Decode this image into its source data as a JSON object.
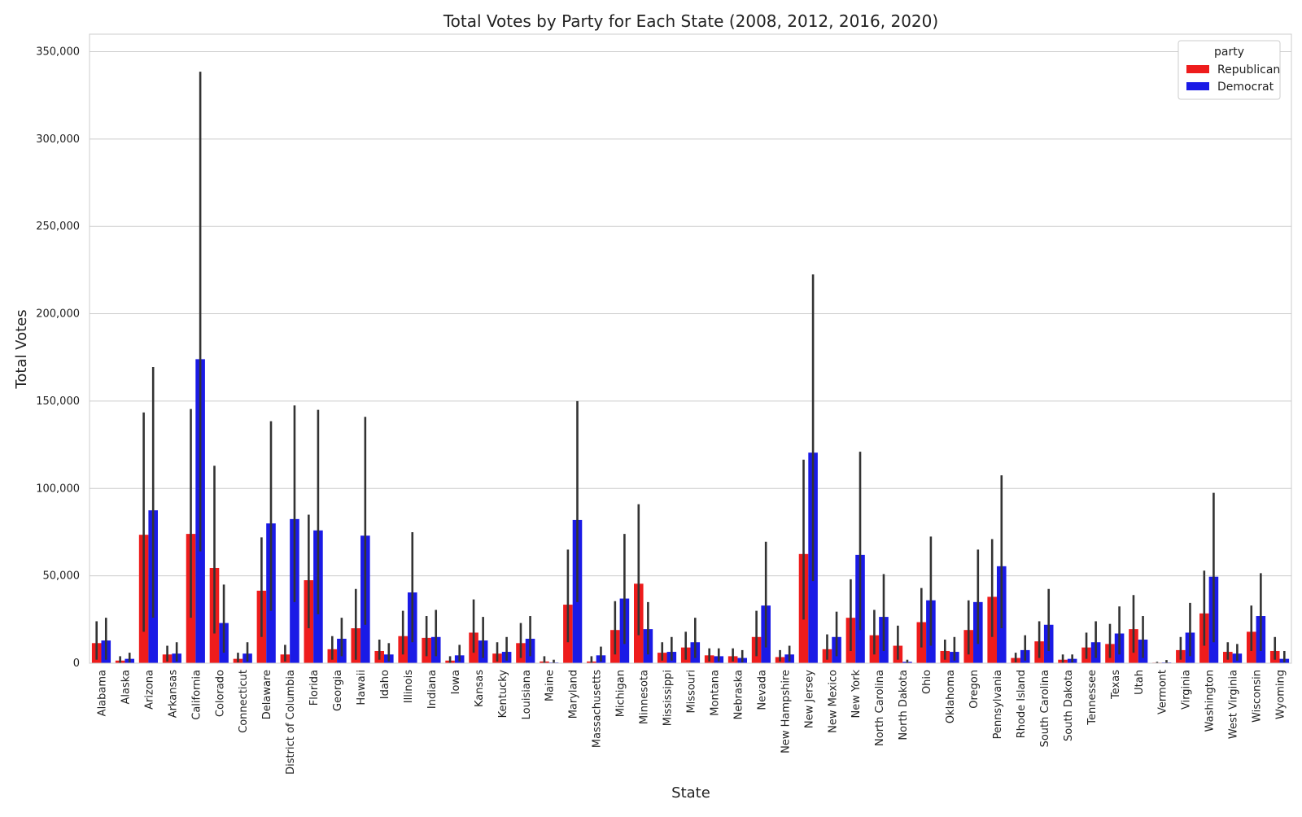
{
  "chart_data": {
    "type": "bar",
    "title": "Total Votes by Party for Each State (2008, 2012, 2016, 2020)",
    "xlabel": "State",
    "ylabel": "Total Votes",
    "ylim": [
      0,
      360000
    ],
    "y_ticks": [
      0,
      50000,
      100000,
      150000,
      200000,
      250000,
      300000,
      350000
    ],
    "y_tick_labels": [
      "0",
      "50,000",
      "100,000",
      "150,000",
      "200,000",
      "250,000",
      "300,000",
      "350,000"
    ],
    "grid": true,
    "legend": {
      "title": "party",
      "placement": "top-right"
    },
    "categories": [
      "Alabama",
      "Alaska",
      "Arizona",
      "Arkansas",
      "California",
      "Colorado",
      "Connecticut",
      "Delaware",
      "District of Columbia",
      "Florida",
      "Georgia",
      "Hawaii",
      "Idaho",
      "Illinois",
      "Indiana",
      "Iowa",
      "Kansas",
      "Kentucky",
      "Louisiana",
      "Maine",
      "Maryland",
      "Massachusetts",
      "Michigan",
      "Minnesota",
      "Mississippi",
      "Missouri",
      "Montana",
      "Nebraska",
      "Nevada",
      "New Hampshire",
      "New Jersey",
      "New Mexico",
      "New York",
      "North Carolina",
      "North Dakota",
      "Ohio",
      "Oklahoma",
      "Oregon",
      "Pennsylvania",
      "Rhode Island",
      "South Carolina",
      "South Dakota",
      "Tennessee",
      "Texas",
      "Utah",
      "Vermont",
      "Virginia",
      "Washington",
      "West Virginia",
      "Wisconsin",
      "Wyoming"
    ],
    "series": [
      {
        "name": "Republican",
        "color": "#ee1c1c",
        "values": [
          11500,
          1500,
          73500,
          5000,
          74000,
          54500,
          2500,
          41500,
          5000,
          47500,
          8000,
          20000,
          7000,
          15500,
          14500,
          1500,
          17500,
          5500,
          11500,
          1000,
          33500,
          1000,
          19000,
          45500,
          6000,
          9000,
          4500,
          4000,
          15000,
          3500,
          62500,
          8000,
          26000,
          16000,
          10000,
          23500,
          7000,
          19000,
          38000,
          3000,
          12500,
          2000,
          9000,
          11000,
          19500,
          300,
          7500,
          28500,
          6500,
          18000,
          7000
        ],
        "ci": [
          [
            2000,
            24000
          ],
          [
            200,
            4000
          ],
          [
            18000,
            143500
          ],
          [
            1000,
            10000
          ],
          [
            26000,
            145500
          ],
          [
            17000,
            113000
          ],
          [
            500,
            6000
          ],
          [
            15000,
            72000
          ],
          [
            1000,
            10500
          ],
          [
            20000,
            85000
          ],
          [
            2000,
            15500
          ],
          [
            2000,
            42500
          ],
          [
            2000,
            13500
          ],
          [
            5000,
            30000
          ],
          [
            4000,
            27000
          ],
          [
            200,
            4000
          ],
          [
            6000,
            36500
          ],
          [
            1000,
            12000
          ],
          [
            3000,
            23000
          ],
          [
            200,
            4000
          ],
          [
            12000,
            65000
          ],
          [
            200,
            4000
          ],
          [
            5000,
            35500
          ],
          [
            16000,
            91000
          ],
          [
            1500,
            12000
          ],
          [
            2000,
            18000
          ],
          [
            1000,
            8500
          ],
          [
            1000,
            8500
          ],
          [
            4000,
            30000
          ],
          [
            1000,
            7500
          ],
          [
            25000,
            116500
          ],
          [
            2000,
            16500
          ],
          [
            7000,
            48000
          ],
          [
            5000,
            30500
          ],
          [
            2000,
            21500
          ],
          [
            9000,
            43000
          ],
          [
            2000,
            13500
          ],
          [
            5000,
            36000
          ],
          [
            15000,
            71000
          ],
          [
            500,
            6000
          ],
          [
            3000,
            24000
          ],
          [
            300,
            5000
          ],
          [
            2500,
            17500
          ],
          [
            3000,
            22500
          ],
          [
            6000,
            39000
          ],
          [
            0,
            800
          ],
          [
            2000,
            15000
          ],
          [
            10000,
            53000
          ],
          [
            2000,
            12000
          ],
          [
            7000,
            33000
          ],
          [
            2000,
            15000
          ]
        ]
      },
      {
        "name": "Democrat",
        "color": "#1a1ae6",
        "values": [
          13000,
          2500,
          87500,
          5500,
          174000,
          23000,
          5500,
          80000,
          82500,
          76000,
          14000,
          73000,
          5000,
          40500,
          15000,
          4500,
          13000,
          6500,
          14000,
          400,
          82000,
          4500,
          37000,
          19500,
          6500,
          12000,
          4000,
          3000,
          33000,
          5000,
          120500,
          15000,
          62000,
          26500,
          800,
          36000,
          6500,
          35000,
          55500,
          7500,
          22000,
          2500,
          12000,
          17000,
          13500,
          400,
          17500,
          49500,
          5500,
          27000,
          2500
        ],
        "ci": [
          [
            2000,
            26000
          ],
          [
            500,
            6000
          ],
          [
            26000,
            169500
          ],
          [
            1000,
            12000
          ],
          [
            64000,
            338500
          ],
          [
            6000,
            45000
          ],
          [
            1000,
            12000
          ],
          [
            30000,
            138500
          ],
          [
            35000,
            147500
          ],
          [
            28000,
            145000
          ],
          [
            4000,
            26000
          ],
          [
            22000,
            141000
          ],
          [
            1000,
            11500
          ],
          [
            12000,
            75000
          ],
          [
            4000,
            30500
          ],
          [
            1000,
            10500
          ],
          [
            3000,
            26500
          ],
          [
            1500,
            15000
          ],
          [
            4000,
            27000
          ],
          [
            0,
            2000
          ],
          [
            35000,
            150000
          ],
          [
            1000,
            9500
          ],
          [
            11000,
            74000
          ],
          [
            5000,
            35000
          ],
          [
            1500,
            15000
          ],
          [
            3000,
            26000
          ],
          [
            1000,
            8500
          ],
          [
            500,
            7500
          ],
          [
            9000,
            69500
          ],
          [
            1000,
            10000
          ],
          [
            47000,
            222500
          ],
          [
            4000,
            29500
          ],
          [
            19000,
            121000
          ],
          [
            7000,
            51000
          ],
          [
            100,
            2000
          ],
          [
            10000,
            72500
          ],
          [
            1500,
            15000
          ],
          [
            11000,
            65000
          ],
          [
            20000,
            107500
          ],
          [
            1500,
            16000
          ],
          [
            7000,
            42500
          ],
          [
            500,
            5000
          ],
          [
            3000,
            24000
          ],
          [
            5000,
            32500
          ],
          [
            3000,
            27000
          ],
          [
            0,
            1800
          ],
          [
            4000,
            34500
          ],
          [
            12000,
            97500
          ],
          [
            1500,
            11000
          ],
          [
            7000,
            51500
          ],
          [
            500,
            7000
          ]
        ]
      }
    ]
  }
}
